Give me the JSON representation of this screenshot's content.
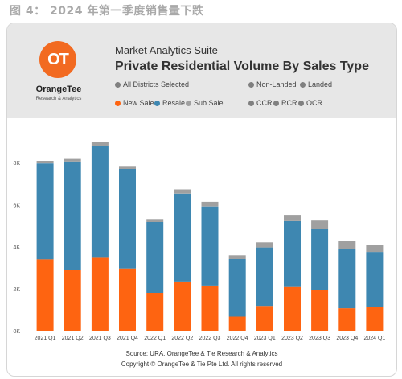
{
  "figure_caption": "图 4： 2024 年第一季度销售量下跌",
  "header": {
    "suite_name": "Market Analytics Suite",
    "title": "Private Residential Volume By Sales Type",
    "logo_mark": "OT",
    "brand_name": "OrangeTee",
    "brand_sub": "Research & Analytics"
  },
  "filters": {
    "districts": {
      "label": "All Districts Selected",
      "color": "#808080"
    },
    "property_types": [
      {
        "label": "Non-Landed",
        "color": "#808080"
      },
      {
        "label": "Landed",
        "color": "#808080"
      }
    ],
    "sales_types": [
      {
        "label": "New Sale",
        "color": "#fe6411"
      },
      {
        "label": "Resale",
        "color": "#3e87b1"
      },
      {
        "label": "Sub Sale",
        "color": "#a0a0a0"
      }
    ],
    "regions": [
      {
        "label": "CCR",
        "color": "#808080"
      },
      {
        "label": "RCR",
        "color": "#808080"
      },
      {
        "label": "OCR",
        "color": "#808080"
      }
    ]
  },
  "chart_data": {
    "type": "bar",
    "stacked": true,
    "categories": [
      "2021 Q1",
      "2021 Q2",
      "2021 Q3",
      "2021 Q4",
      "2022 Q1",
      "2022 Q2",
      "2022 Q3",
      "2022 Q4",
      "2023 Q1",
      "2023 Q2",
      "2023 Q3",
      "2023 Q4",
      "2024 Q1"
    ],
    "series": [
      {
        "name": "New Sale",
        "color": "#fe6411",
        "values": [
          3400,
          2900,
          3470,
          2960,
          1800,
          2340,
          2150,
          670,
          1180,
          2080,
          1940,
          1070,
          1150
        ]
      },
      {
        "name": "Resale",
        "color": "#3e87b1",
        "values": [
          4560,
          5150,
          5320,
          4740,
          3370,
          4180,
          3760,
          2740,
          2780,
          3130,
          2920,
          2810,
          2600
        ]
      },
      {
        "name": "Sub Sale",
        "color": "#a0a0a0",
        "values": [
          120,
          160,
          180,
          140,
          140,
          200,
          220,
          180,
          240,
          300,
          380,
          410,
          310
        ]
      }
    ],
    "ylim": [
      0,
      9000
    ],
    "yticks": [
      0,
      2000,
      4000,
      6000,
      8000
    ],
    "ytick_labels": [
      "0K",
      "2K",
      "4K",
      "6K",
      "8K"
    ],
    "grid": false,
    "xlabel": "",
    "ylabel": ""
  },
  "footer": {
    "source": "Source: URA, OrangeTee & Tie Research & Analytics",
    "copyright": "Copyright © OrangeTee & Tie Pte Ltd. All rights reserved"
  }
}
